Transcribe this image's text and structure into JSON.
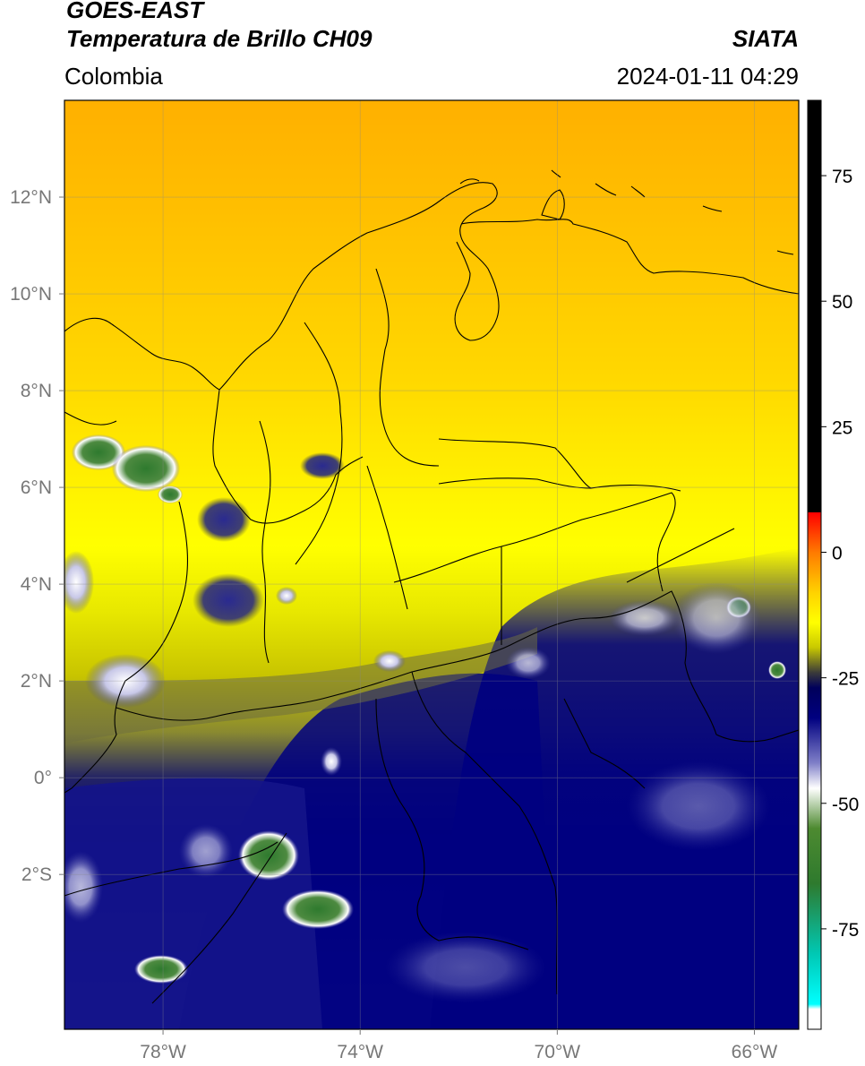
{
  "header": {
    "satellite": "GOES-EAST",
    "product": "Temperatura de Brillo CH09",
    "brand": "SIATA",
    "region": "Colombia",
    "timestamp": "2024-01-11 04:29"
  },
  "map": {
    "lon_range": [
      -80,
      -65.1
    ],
    "lat_range": [
      -5.2,
      14
    ],
    "lat_ticks": [
      {
        "value": 12,
        "label": "12°N"
      },
      {
        "value": 10,
        "label": "10°N"
      },
      {
        "value": 8,
        "label": "8°N"
      },
      {
        "value": 6,
        "label": "6°N"
      },
      {
        "value": 4,
        "label": "4°N"
      },
      {
        "value": 2,
        "label": "2°N"
      },
      {
        "value": 0,
        "label": "0°"
      },
      {
        "value": -2,
        "label": "2°S"
      }
    ],
    "lon_ticks": [
      {
        "value": -78,
        "label": "78°W"
      },
      {
        "value": -74,
        "label": "74°W"
      },
      {
        "value": -70,
        "label": "70°W"
      },
      {
        "value": -66,
        "label": "66°W"
      }
    ]
  },
  "colorbar": {
    "vmin": -95,
    "vmax": 90,
    "ticks": [
      {
        "value": 75,
        "label": "75"
      },
      {
        "value": 50,
        "label": "50"
      },
      {
        "value": 25,
        "label": "25"
      },
      {
        "value": 0,
        "label": "0"
      },
      {
        "value": -25,
        "label": "-25"
      },
      {
        "value": -50,
        "label": "-50"
      },
      {
        "value": -75,
        "label": "-75"
      }
    ],
    "stops": [
      {
        "value": 90,
        "color": "#000000"
      },
      {
        "value": 8,
        "color": "#000000"
      },
      {
        "value": 7.9,
        "color": "#ff0000"
      },
      {
        "value": 0,
        "color": "#ff7a00"
      },
      {
        "value": -8,
        "color": "#ffd200"
      },
      {
        "value": -14,
        "color": "#ffff00"
      },
      {
        "value": -19,
        "color": "#c8c800"
      },
      {
        "value": -24,
        "color": "#3a3a3a"
      },
      {
        "value": -27,
        "color": "#00005a"
      },
      {
        "value": -33,
        "color": "#000080"
      },
      {
        "value": -42,
        "color": "#8080c8"
      },
      {
        "value": -47,
        "color": "#ffffff"
      },
      {
        "value": -55,
        "color": "#4d8a30"
      },
      {
        "value": -66,
        "color": "#2e7a2e"
      },
      {
        "value": -80,
        "color": "#00c8b4"
      },
      {
        "value": -90,
        "color": "#00ffff"
      },
      {
        "value": -91,
        "color": "#ffffff"
      },
      {
        "value": -95,
        "color": "#ffffff"
      }
    ]
  }
}
